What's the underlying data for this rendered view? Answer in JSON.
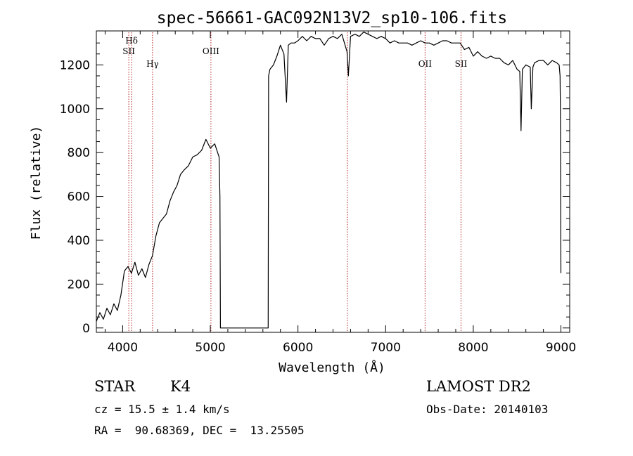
{
  "chart_data": {
    "type": "line",
    "title": "spec-56661-GAC092N13V2_sp10-106.fits",
    "xlabel": "Wavelength (Å)",
    "ylabel": "Flux (relative)",
    "xlim": [
      3700,
      9100
    ],
    "ylim": [
      -20,
      1355
    ],
    "x_ticks": [
      4000,
      5000,
      6000,
      7000,
      8000,
      9000
    ],
    "y_ticks": [
      0,
      200,
      400,
      600,
      800,
      1000,
      1200
    ],
    "grid": false,
    "line_color": "#000000",
    "marker_color": "#b22222",
    "series": [
      {
        "x": [
          3700,
          3740,
          3780,
          3820,
          3860,
          3900,
          3940,
          3980,
          4020,
          4060,
          4100,
          4140,
          4180,
          4220,
          4260,
          4300,
          4340,
          4380,
          4420,
          4460,
          4500,
          4540,
          4580,
          4620,
          4660,
          4700,
          4750,
          4800,
          4850,
          4900,
          4950,
          5000,
          5050,
          5100,
          5110,
          5115,
          5660,
          5665,
          5680,
          5720,
          5760,
          5800,
          5840,
          5870,
          5890,
          5920,
          5960,
          6000,
          6050,
          6100,
          6150,
          6200,
          6250,
          6300,
          6350,
          6400,
          6450,
          6500,
          6560,
          6575,
          6600,
          6650,
          6700,
          6750,
          6800,
          6850,
          6900,
          6950,
          7000,
          7050,
          7100,
          7150,
          7200,
          7250,
          7300,
          7350,
          7400,
          7450,
          7500,
          7550,
          7600,
          7650,
          7700,
          7750,
          7800,
          7850,
          7900,
          7950,
          8000,
          8050,
          8100,
          8150,
          8200,
          8250,
          8300,
          8350,
          8400,
          8450,
          8500,
          8530,
          8545,
          8560,
          8600,
          8650,
          8662,
          8680,
          8700,
          8750,
          8800,
          8850,
          8900,
          8950,
          8980,
          8990,
          8995,
          9000
        ],
        "y": [
          30,
          70,
          40,
          90,
          60,
          110,
          80,
          150,
          260,
          280,
          250,
          300,
          240,
          270,
          230,
          290,
          330,
          420,
          480,
          500,
          520,
          580,
          620,
          650,
          700,
          720,
          740,
          780,
          790,
          810,
          860,
          820,
          840,
          780,
          600,
          0,
          0,
          1150,
          1180,
          1200,
          1240,
          1290,
          1250,
          1030,
          1290,
          1300,
          1300,
          1310,
          1330,
          1310,
          1330,
          1320,
          1320,
          1290,
          1320,
          1330,
          1320,
          1340,
          1260,
          1150,
          1330,
          1340,
          1330,
          1350,
          1340,
          1330,
          1320,
          1330,
          1320,
          1300,
          1310,
          1300,
          1300,
          1300,
          1290,
          1300,
          1310,
          1300,
          1300,
          1290,
          1300,
          1310,
          1310,
          1300,
          1300,
          1300,
          1270,
          1280,
          1240,
          1260,
          1240,
          1230,
          1240,
          1230,
          1230,
          1210,
          1200,
          1220,
          1180,
          1170,
          900,
          1180,
          1200,
          1190,
          1000,
          1190,
          1210,
          1220,
          1220,
          1200,
          1220,
          1210,
          1200,
          1150,
          950,
          250
        ]
      }
    ],
    "lines": [
      {
        "label": "Hδ",
        "x": 4102
      },
      {
        "label": "SII",
        "x": 4070
      },
      {
        "label": "Hγ",
        "x": 4341
      },
      {
        "label": "OIII",
        "x": 5007
      },
      {
        "label": "",
        "x": 6563
      },
      {
        "label": "OII",
        "x": 7450
      },
      {
        "label": "SII",
        "x": 7860
      }
    ]
  },
  "info": {
    "class": "STAR",
    "subclass": "K4",
    "survey": "LAMOST DR2",
    "cz": "cz = 15.5 ± 1.4 km/s",
    "obsdate": "Obs-Date: 20140103",
    "radec": "RA =  90.68369, DEC =  13.25505"
  }
}
